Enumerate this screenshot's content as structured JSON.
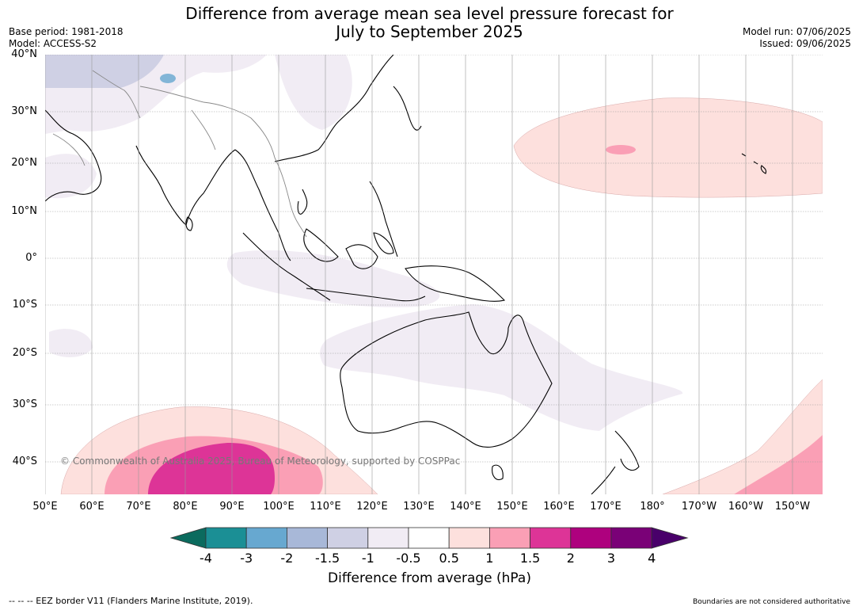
{
  "header": {
    "title_line1": "Difference from average mean sea level pressure forecast for",
    "title_line2": "July to September 2025",
    "base_period": "Base period: 1981-2018",
    "model": "Model: ACCESS-S2",
    "model_run": "Model run: 07/06/2025",
    "issued": "Issued: 09/06/2025"
  },
  "map": {
    "lat_labels": [
      "40°N",
      "30°N",
      "20°N",
      "10°N",
      "0°",
      "10°S",
      "20°S",
      "30°S",
      "40°S"
    ],
    "lon_labels": [
      "50°E",
      "60°E",
      "70°E",
      "80°E",
      "90°E",
      "100°E",
      "110°E",
      "120°E",
      "130°E",
      "140°E",
      "150°E",
      "160°E",
      "170°E",
      "180°",
      "170°W",
      "160°W",
      "150°W"
    ],
    "copyright": "© Commonwealth of Australia 2025, Bureau of Meteorology, supported by COSPPac",
    "land_outline_color": "#000000",
    "border_color": "#888888",
    "grid_color": "#999999"
  },
  "colorbar": {
    "tick_labels": [
      "-4",
      "-3",
      "-2",
      "-1.5",
      "-1",
      "-0.5",
      "0.5",
      "1",
      "1.5",
      "2",
      "3",
      "4"
    ],
    "colors": [
      "#0b6b5e",
      "#1b8f95",
      "#67a8d0",
      "#a8b8d8",
      "#cfd0e4",
      "#f1ecf4",
      "#ffffff",
      "#fde0dd",
      "#fa9fb5",
      "#dd3497",
      "#ae017e",
      "#7a0177",
      "#49006a"
    ],
    "label": "Difference from average (hPa)"
  },
  "footer": {
    "eez_note": "--  --  -- EEZ border V11 (Flanders Marine Institute, 2019).",
    "boundaries_note": "Boundaries are not considered authoritative"
  }
}
